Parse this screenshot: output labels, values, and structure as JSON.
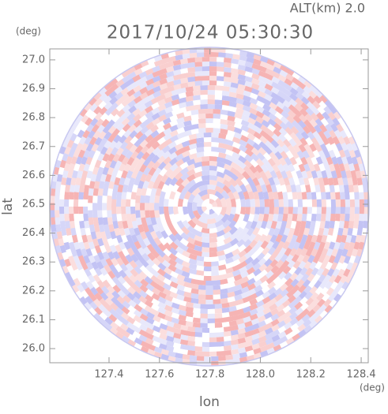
{
  "chart_data": {
    "type": "radar-ppi",
    "title": "2017/10/24 05:30:30",
    "subtitle": "ALT(km) 2.0",
    "x_label": "lon",
    "y_label": "lat",
    "x_unit": "(deg)",
    "y_unit": "(deg)",
    "xlim": [
      127.165,
      128.428
    ],
    "ylim": [
      25.951,
      27.038
    ],
    "xticks": [
      127.4,
      127.6,
      127.8,
      {
        "value": 128,
        "label": "128.0"
      },
      128.2,
      128.4
    ],
    "yticks": [
      {
        "value": 26,
        "label": "26.0"
      },
      26.1,
      26.2,
      26.3,
      26.4,
      26.5,
      26.6,
      26.7,
      26.8,
      26.9,
      {
        "value": 27,
        "label": "27.0"
      }
    ]
  }
}
